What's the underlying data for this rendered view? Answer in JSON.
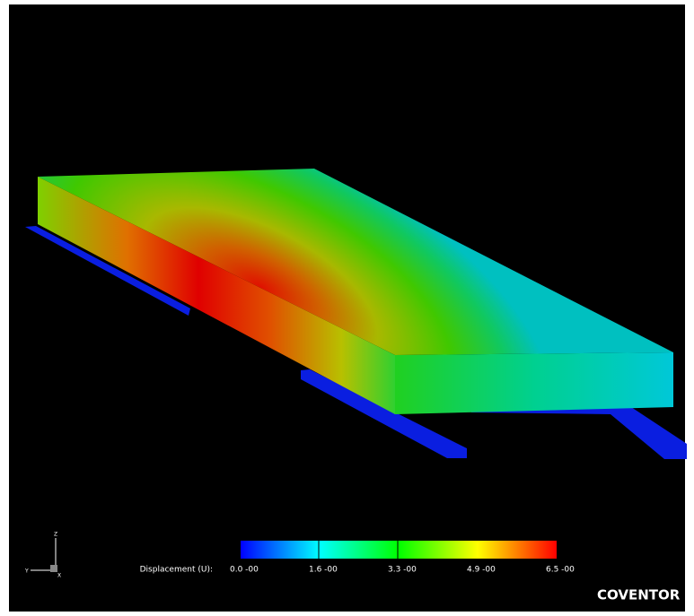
{
  "legend": {
    "title": "Displacement (U):",
    "ticks": [
      "0.0 -00",
      "1.6 -00",
      "3.3 -00",
      "4.9 -00",
      "6.5 -00"
    ]
  },
  "axes": {
    "x": "X",
    "y": "Y",
    "z": "Z"
  },
  "brand": "COVENTOR"
}
